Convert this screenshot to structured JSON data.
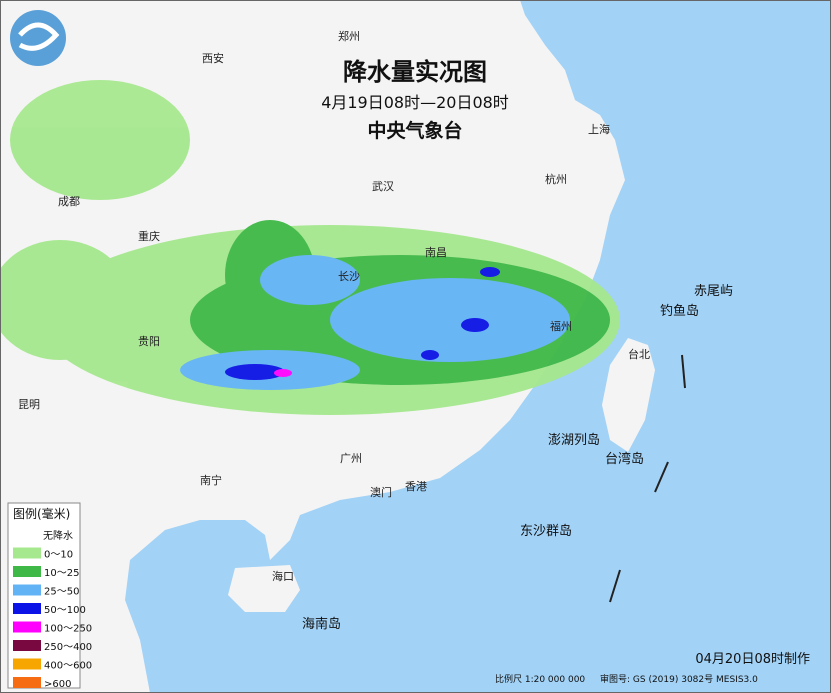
{
  "header": {
    "title": "降水量实况图",
    "subtitle": "4月19日08时—20日08时",
    "agency": "中央气象台"
  },
  "legend": {
    "title": "图例(毫米)",
    "items": [
      {
        "label": "无降水",
        "color": "#ffffff"
      },
      {
        "label": "0～10",
        "color": "#a6e88e"
      },
      {
        "label": "10～25",
        "color": "#3fb847"
      },
      {
        "label": "25～50",
        "color": "#62b3f5"
      },
      {
        "label": "50～100",
        "color": "#0b13e6"
      },
      {
        "label": "100～250",
        "color": "#ff00ff"
      },
      {
        "label": "250～400",
        "color": "#7a0840"
      },
      {
        "label": "400～600",
        "color": "#f7a600"
      },
      {
        "label": ">600",
        "color": "#f56c13"
      }
    ]
  },
  "places": [
    "郑州",
    "西安",
    "成都",
    "重庆",
    "武汉",
    "长沙",
    "贵阳",
    "昆明",
    "南宁",
    "广州",
    "南昌",
    "杭州",
    "上海",
    "福州",
    "台北",
    "香港",
    "澳门",
    "海口",
    "赤尾屿",
    "钓鱼岛",
    "澎湖列岛",
    "台湾岛",
    "东沙群岛",
    "海南岛"
  ],
  "footer": {
    "made": "04月20日08时制作",
    "scale": "比例尺 1:20 000 000",
    "approval": "审图号: GS (2019) 3082号 MESIS3.0"
  }
}
